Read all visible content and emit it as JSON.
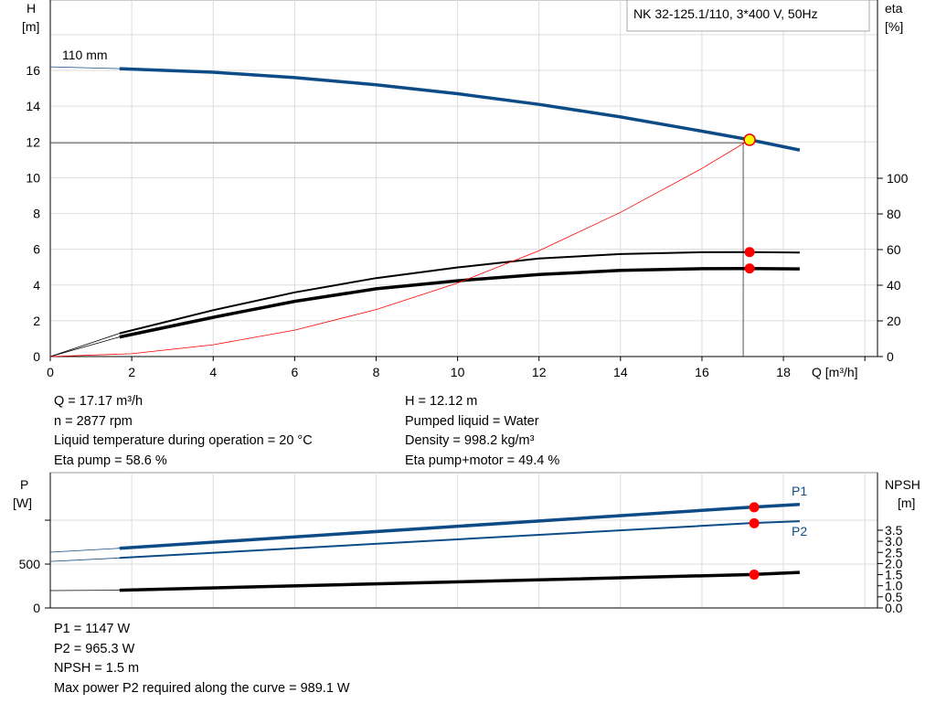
{
  "chart_data": [
    {
      "type": "line",
      "title": "NK 32-125.1/110, 3*400 V, 50Hz",
      "xlabel": "Q [m³/h]",
      "xlim": [
        0,
        20
      ],
      "xticks": [
        0,
        2,
        4,
        6,
        8,
        10,
        12,
        14,
        16,
        18
      ],
      "ylabel_left": "H",
      "ylabel_left_unit": "[m]",
      "ylim_left": [
        0,
        18
      ],
      "yticks_left": [
        0,
        2,
        4,
        6,
        8,
        10,
        12,
        14,
        16
      ],
      "ylabel_right": "eta",
      "ylabel_right_unit": "[%]",
      "yticks_right": [
        0,
        20,
        40,
        60,
        80,
        100
      ],
      "grid": true,
      "curve_label": "110 mm",
      "series": [
        {
          "axis": "H",
          "color": "#0d4b87",
          "x": [
            0,
            1.7,
            4,
            6,
            8,
            10,
            12,
            14,
            16,
            17.17,
            18.4
          ],
          "y": [
            16.2,
            16.1,
            15.9,
            15.6,
            15.2,
            14.7,
            14.1,
            13.4,
            12.6,
            12.12,
            11.55
          ]
        },
        {
          "axis": "eta",
          "color": "#000000",
          "x": [
            0,
            1.7,
            4,
            6,
            8,
            10,
            12,
            14,
            16,
            17.17,
            18.4
          ],
          "y": [
            0,
            13,
            26,
            36,
            44,
            50,
            55,
            57.5,
            58.5,
            58.6,
            58.3
          ]
        },
        {
          "axis": "eta",
          "color": "#000000",
          "x": [
            0,
            1.7,
            4,
            6,
            8,
            10,
            12,
            14,
            16,
            17.17,
            18.4
          ],
          "y": [
            0,
            11,
            22,
            31,
            38,
            42.5,
            46,
            48.3,
            49.3,
            49.4,
            49.2
          ]
        },
        {
          "axis": "H",
          "color": "#ff0000",
          "x": [
            0,
            2,
            4,
            6,
            8,
            10,
            12,
            14,
            16,
            17.17
          ],
          "y": [
            0,
            0.16,
            0.66,
            1.48,
            2.63,
            4.11,
            5.92,
            8.06,
            10.52,
            12.12
          ]
        }
      ],
      "duty_point": {
        "Q": 17.17,
        "H": 12.12,
        "eta_pump": 58.6,
        "eta_total": 49.4
      }
    },
    {
      "type": "line",
      "xlim": [
        0,
        20
      ],
      "ylabel_left": "P",
      "ylabel_left_unit": "[W]",
      "ylim_left": [
        0,
        1550
      ],
      "yticks_left": [
        0,
        500,
        1000
      ],
      "ytick_labels_left": [
        "0",
        "500",
        ""
      ],
      "ylabel_right": "NPSH",
      "ylabel_right_unit": "[m]",
      "yticks_right": [
        "0.0",
        "0.5",
        "1.0",
        "1.5",
        "2.0",
        "2.5",
        "3.0",
        "3.5"
      ],
      "grid": true,
      "series": [
        {
          "name": "P1",
          "axis": "P",
          "color": "#0d4b87",
          "x": [
            0,
            1.7,
            17.17,
            18.4
          ],
          "y": [
            635,
            680,
            1147,
            1180
          ]
        },
        {
          "name": "P2",
          "axis": "P",
          "color": "#0d4b87",
          "x": [
            0,
            1.7,
            17.17,
            18.4
          ],
          "y": [
            530,
            570,
            965.3,
            989
          ]
        },
        {
          "axis": "NPSH",
          "color": "#000000",
          "x": [
            0,
            1.7,
            17.17,
            18.4
          ],
          "y": [
            0.78,
            0.8,
            1.5,
            1.6
          ]
        }
      ]
    }
  ],
  "info1": {
    "left": [
      "Q = 17.17 m³/h",
      "n = 2877 rpm",
      "Liquid temperature during operation = 20 °C",
      "Eta pump = 58.6 %"
    ],
    "right": [
      "H = 12.12 m",
      "Pumped liquid = Water",
      "Density = 998.2 kg/m³",
      "Eta pump+motor = 49.4 %"
    ]
  },
  "info2": [
    "P1 = 1147 W",
    "P2 = 965.3 W",
    "NPSH = 1.5 m",
    "Max power P2 required along the curve = 989.1 W"
  ]
}
